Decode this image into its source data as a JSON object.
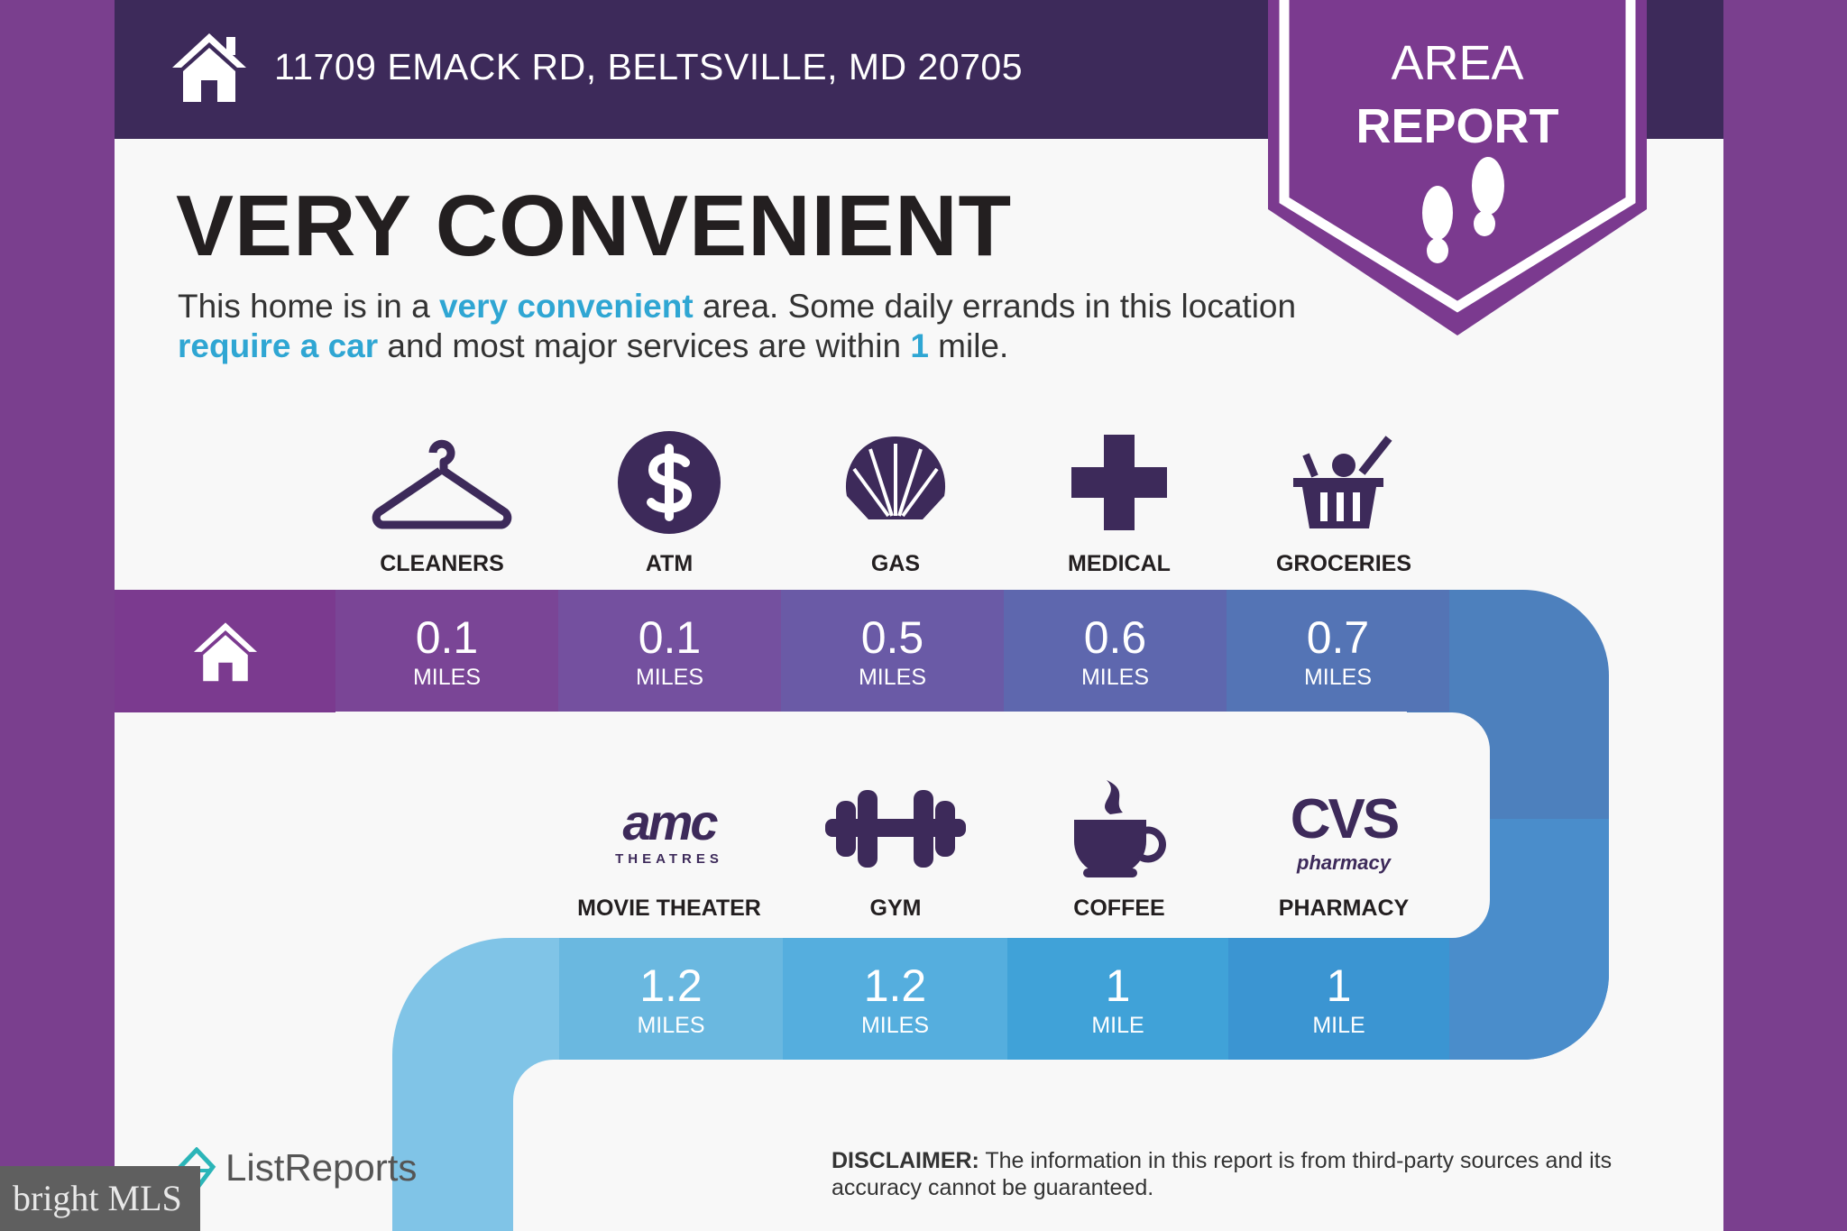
{
  "header": {
    "address": "11709 EMACK RD, BELTSVILLE, MD 20705",
    "badge_line1": "AREA",
    "badge_line2": "REPORT"
  },
  "summary": {
    "title": "VERY CONVENIENT",
    "text_1": "This home is in a ",
    "hl_1": "very convenient",
    "text_2": " area. Some daily errands in this location ",
    "hl_2": "require a car",
    "text_3": " and most major services are within ",
    "hl_3": "1",
    "text_4": " mile."
  },
  "row1": [
    {
      "label": "CLEANERS",
      "value": "0.1",
      "unit": "MILES",
      "icon": "hanger-icon",
      "color": "#7a4596"
    },
    {
      "label": "ATM",
      "value": "0.1",
      "unit": "MILES",
      "icon": "dollar-icon",
      "color": "#74509f"
    },
    {
      "label": "GAS",
      "value": "0.5",
      "unit": "MILES",
      "icon": "shell-icon",
      "color": "#6a5aa6"
    },
    {
      "label": "MEDICAL",
      "value": "0.6",
      "unit": "MILES",
      "icon": "medical-cross-icon",
      "color": "#5e67ae"
    },
    {
      "label": "GROCERIES",
      "value": "0.7",
      "unit": "MILES",
      "icon": "grocery-basket-icon",
      "color": "#5474b5"
    }
  ],
  "row2": [
    {
      "label": "MOVIE THEATER",
      "value": "1.2",
      "unit": "MILES",
      "icon": "amc-logo",
      "logo_text": "amc",
      "logo_sub": "THEATRES",
      "color": "#6ab8e0"
    },
    {
      "label": "GYM",
      "value": "1.2",
      "unit": "MILES",
      "icon": "dumbbell-icon",
      "color": "#55aede"
    },
    {
      "label": "COFFEE",
      "value": "1",
      "unit": "MILE",
      "icon": "coffee-cup-icon",
      "color": "#40a2d8"
    },
    {
      "label": "PHARMACY",
      "value": "1",
      "unit": "MILE",
      "icon": "cvs-logo",
      "logo_text": "CVS",
      "logo_sub": "pharmacy",
      "color": "#3b95d2"
    }
  ],
  "footer": {
    "brand": "ListReports",
    "disclaimer_label": "DISCLAIMER:",
    "disclaimer_text": " The information in this report is from third-party sources and its accuracy cannot be guaranteed.",
    "watermark": "bright MLS"
  },
  "colors": {
    "page": "#7a3f8e",
    "header": "#3d2a5a",
    "badge": "#7b3a8f",
    "accent": "#2fa6d3",
    "icon": "#3d2a5a"
  }
}
